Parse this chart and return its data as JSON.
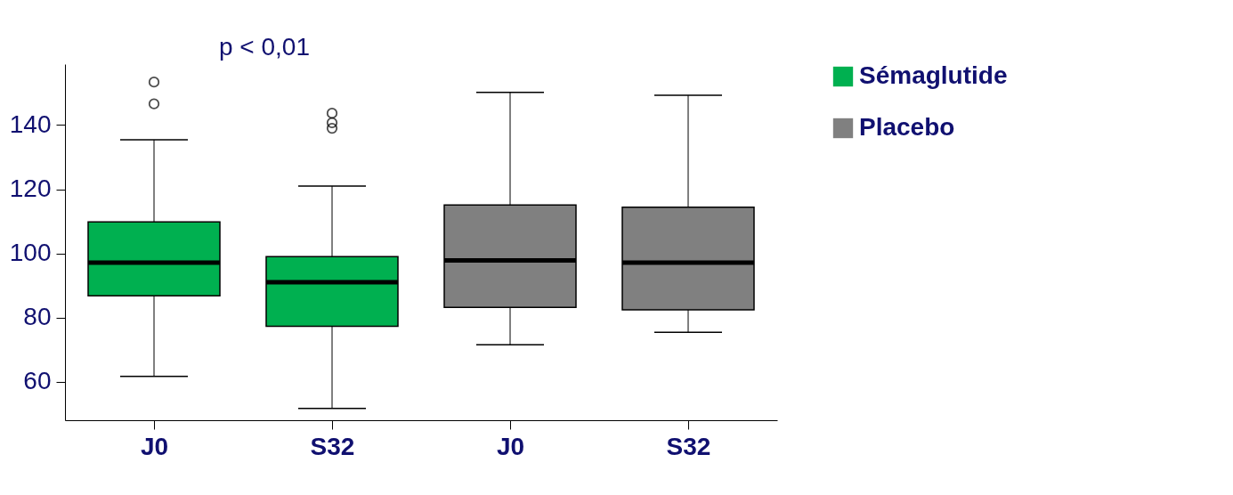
{
  "chart_data": {
    "type": "box",
    "categories": [
      "J0",
      "S32",
      "J0",
      "S32"
    ],
    "series": [
      {
        "name": "Sémaglutide",
        "color": "#00b050",
        "boxes": [
          {
            "low": 61.7,
            "q1": 86.8,
            "median": 97.1,
            "q3": 109.8,
            "high": 135.4,
            "outliers": [
              153.4,
              146.6
            ]
          },
          {
            "low": 51.7,
            "q1": 77.3,
            "median": 91.0,
            "q3": 99.0,
            "high": 121.0,
            "outliers": [
              143.7,
              140.7,
              139.0
            ]
          },
          null,
          null
        ]
      },
      {
        "name": "Placebo",
        "color": "#808080",
        "boxes": [
          null,
          null,
          {
            "low": 71.5,
            "q1": 83.2,
            "median": 97.8,
            "q3": 115.1,
            "high": 150.2
          },
          {
            "low": 75.4,
            "q1": 82.4,
            "median": 97.1,
            "q3": 114.4,
            "high": 149.3
          }
        ]
      }
    ],
    "ylim": [
      48,
      159
    ],
    "yticks": [
      60,
      80,
      100,
      120,
      140
    ],
    "grid": false,
    "legend": "top right",
    "annotations": [
      "p < 0,01"
    ]
  }
}
